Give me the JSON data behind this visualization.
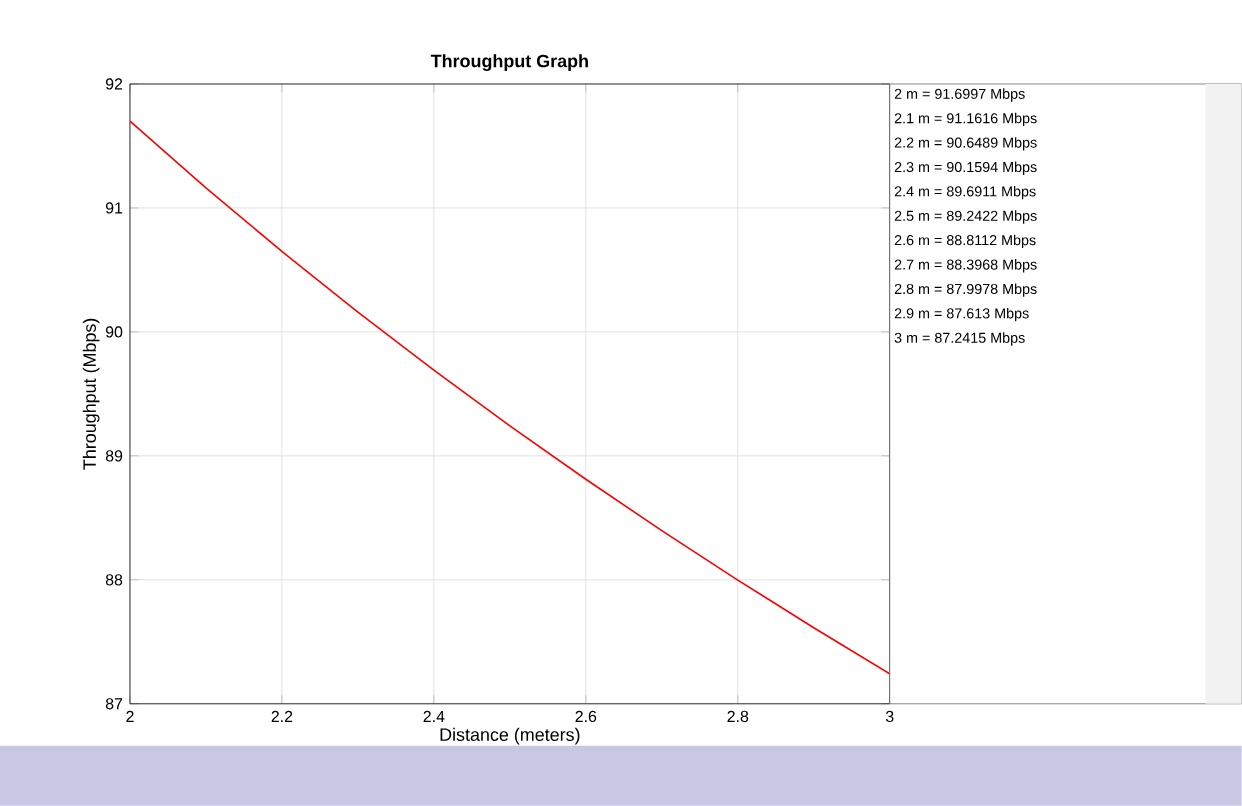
{
  "chart_data": {
    "type": "line",
    "title": "Throughput Graph",
    "xlabel": "Distance (meters)",
    "ylabel": "Throughput (Mbps)",
    "x": [
      2,
      2.1,
      2.2,
      2.3,
      2.4,
      2.5,
      2.6,
      2.7,
      2.8,
      2.9,
      3
    ],
    "series": [
      {
        "color": "#ff0000",
        "values": [
          91.6997,
          91.1616,
          90.6489,
          90.1594,
          89.6911,
          89.2422,
          88.8112,
          88.3968,
          87.9978,
          87.613,
          87.2415
        ]
      }
    ],
    "annotations": [
      "2 m = 91.6997 Mbps",
      "2.1 m = 91.1616 Mbps",
      "2.2 m = 90.6489 Mbps",
      "2.3 m = 90.1594 Mbps",
      "2.4 m = 89.6911 Mbps",
      "2.5 m = 89.2422 Mbps",
      "2.6 m = 88.8112 Mbps",
      "2.7 m = 88.3968 Mbps",
      "2.8 m = 87.9978 Mbps",
      "2.9 m = 87.613 Mbps",
      "3 m = 87.2415 Mbps"
    ],
    "xlim": [
      2,
      3
    ],
    "ylim": [
      87,
      92
    ],
    "xticks": [
      2,
      2.2,
      2.4,
      2.6,
      2.8,
      3
    ],
    "yticks": [
      87,
      88,
      89,
      90,
      91,
      92
    ],
    "grid": true,
    "marker": "none",
    "line_style": "solid"
  }
}
